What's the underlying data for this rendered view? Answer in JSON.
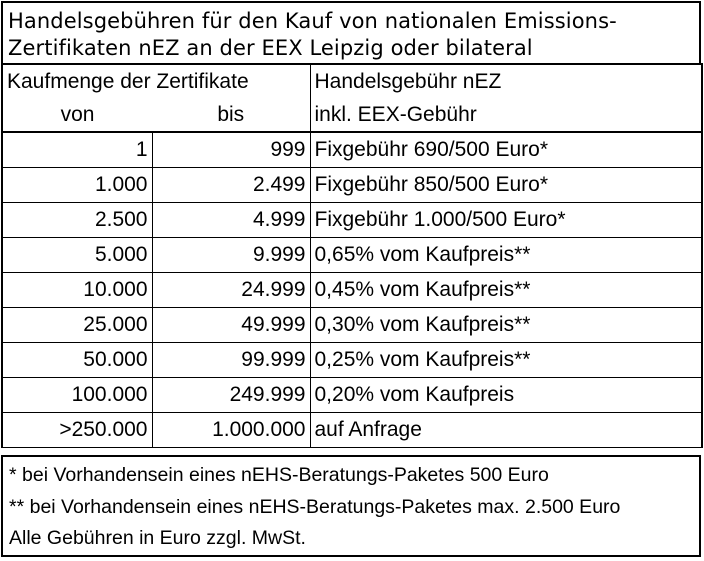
{
  "title": {
    "line1": "Handelsgebühren für den Kauf von nationalen Emissions-",
    "line2": "Zertifikaten nEZ an der EEX Leipzig oder bilateral"
  },
  "header": {
    "quantity_label": "Kaufmenge der Zertifikate",
    "fee_label": "Handelsgebühr nEZ",
    "from_label": "von",
    "to_label": "bis",
    "fee_sub_label": "inkl. EEX-Gebühr"
  },
  "rows": [
    {
      "from": "1",
      "to": "999",
      "fee": "Fixgebühr 690/500 Euro*"
    },
    {
      "from": "1.000",
      "to": "2.499",
      "fee": "Fixgebühr 850/500 Euro*"
    },
    {
      "from": "2.500",
      "to": "4.999",
      "fee": "Fixgebühr 1.000/500 Euro*"
    },
    {
      "from": "5.000",
      "to": "9.999",
      "fee": "0,65% vom Kaufpreis**"
    },
    {
      "from": "10.000",
      "to": "24.999",
      "fee": "0,45% vom Kaufpreis**"
    },
    {
      "from": "25.000",
      "to": "49.999",
      "fee": "0,30% vom Kaufpreis**"
    },
    {
      "from": "50.000",
      "to": "99.999",
      "fee": "0,25% vom Kaufpreis**"
    },
    {
      "from": "100.000",
      "to": "249.999",
      "fee": "0,20% vom Kaufpreis"
    },
    {
      "from": ">250.000",
      "to": "1.000.000",
      "fee": "auf Anfrage"
    }
  ],
  "notes": {
    "note1": "* bei Vorhandensein eines nEHS-Beratungs-Paketes 500 Euro",
    "note2": "** bei Vorhandensein eines nEHS-Beratungs-Paketes max. 2.500 Euro",
    "note3": "Alle Gebühren in Euro zzgl. MwSt."
  }
}
